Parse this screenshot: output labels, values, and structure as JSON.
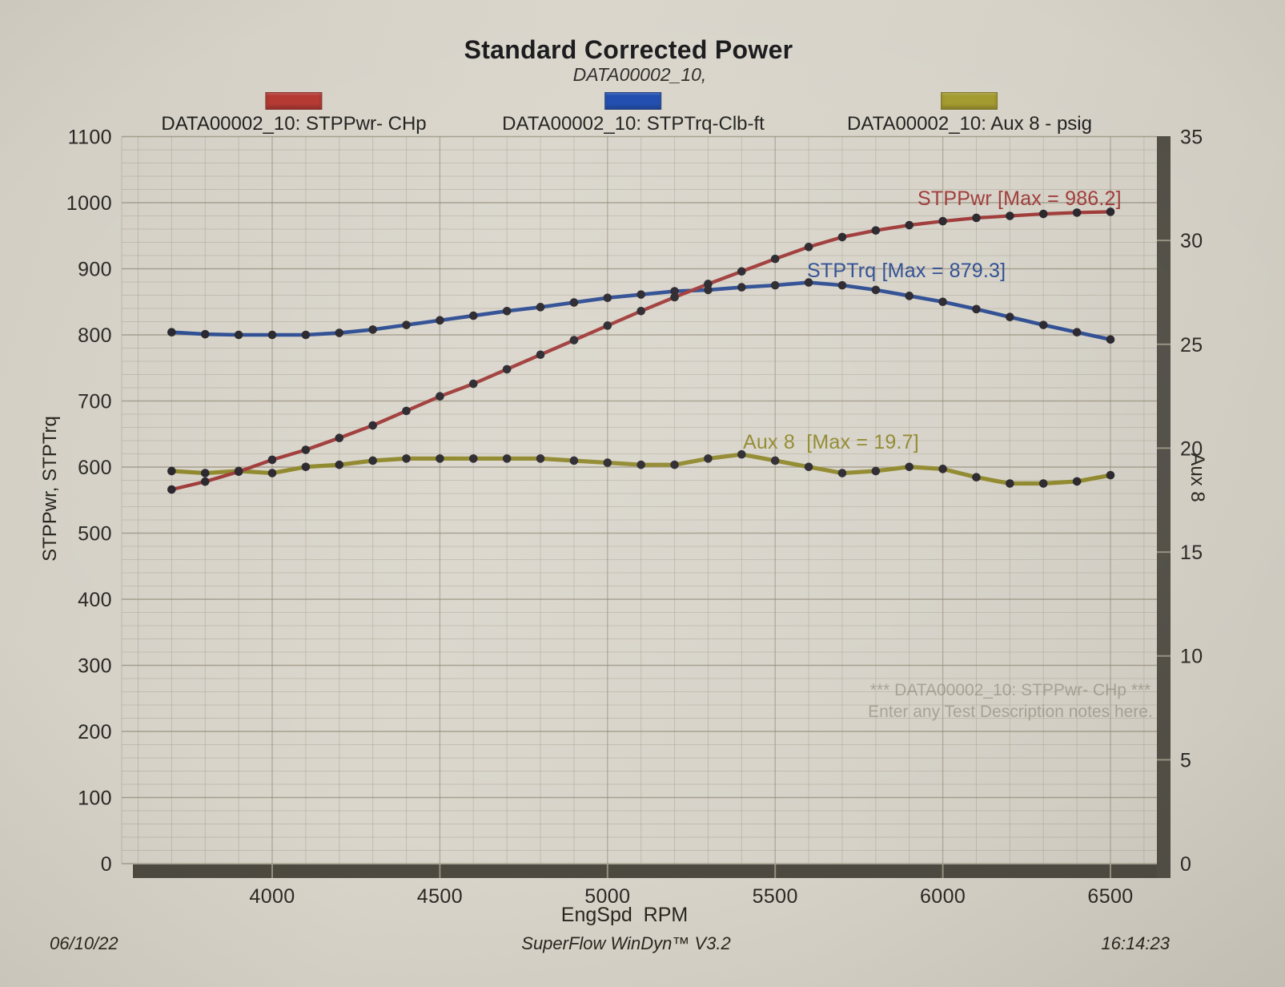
{
  "title": "Standard Corrected Power",
  "subtitle": "DATA00002_10,",
  "legend": {
    "items": [
      {
        "label": "DATA00002_10: STPPwr- CHp",
        "color": "#b43832"
      },
      {
        "label": "DATA00002_10: STPTrq-Clb-ft",
        "color": "#1e4cae"
      },
      {
        "label": "DATA00002_10: Aux 8 - psig",
        "color": "#a39a2d"
      }
    ]
  },
  "axes": {
    "x_label": "EngSpd  RPM",
    "y_left_label": "STPPwr, STPTrq",
    "y_right_label": "Aux 8"
  },
  "watermark": {
    "line1": "*** DATA00002_10: STPPwr- CHp ***",
    "line2": "Enter any Test Description notes here."
  },
  "footer": {
    "date": "06/10/22",
    "software": "SuperFlow WinDyn™ V3.2",
    "time": "16:14:23"
  },
  "chart_data": {
    "type": "line",
    "title": "Standard Corrected Power",
    "xlabel": "EngSpd RPM",
    "ylabel_left": "STPPwr, STPTrq",
    "ylabel_right": "Aux 8",
    "xlim": [
      3550,
      6640
    ],
    "ylim_left": [
      0,
      1100
    ],
    "ylim_right": [
      0,
      35
    ],
    "grid": true,
    "x_ticks": [
      4000,
      4500,
      5000,
      5500,
      6000,
      6500
    ],
    "y_ticks_left": [
      0,
      100,
      200,
      300,
      400,
      500,
      600,
      700,
      800,
      900,
      1000,
      1100
    ],
    "y_ticks_right": [
      0,
      5,
      10,
      15,
      20,
      25,
      30,
      35
    ],
    "marker_color": "#26242a",
    "x": [
      3700,
      3800,
      3900,
      4000,
      4100,
      4200,
      4300,
      4400,
      4500,
      4600,
      4700,
      4800,
      4900,
      5000,
      5100,
      5200,
      5300,
      5400,
      5500,
      5600,
      5700,
      5800,
      5900,
      6000,
      6100,
      6200,
      6300,
      6400,
      6500
    ],
    "series": [
      {
        "name": "STPPwr",
        "unit": "CHp",
        "axis": "left",
        "color": "#9e3937",
        "max": 986.2,
        "annotation": "STPPwr [Max = 986.2]",
        "values": [
          566,
          578,
          593,
          611,
          626,
          644,
          663,
          685,
          707,
          726,
          748,
          770,
          792,
          814,
          836,
          857,
          877,
          896,
          915,
          933,
          948,
          958,
          966,
          972,
          977,
          980,
          983,
          985,
          986.2
        ]
      },
      {
        "name": "STPTrq",
        "unit": "Clb-ft",
        "axis": "left",
        "color": "#2b4b91",
        "max": 879.3,
        "annotation": "STPTrq [Max = 879.3]",
        "values": [
          804,
          801,
          800,
          800,
          800,
          803,
          808,
          815,
          822,
          829,
          836,
          842,
          849,
          856,
          861,
          866,
          868,
          872,
          875,
          879.3,
          875,
          868,
          859,
          850,
          839,
          827,
          815,
          804,
          793
        ]
      },
      {
        "name": "Aux 8",
        "unit": "psig",
        "axis": "right",
        "color": "#8e8629",
        "max": 19.7,
        "annotation": "Aux 8  [Max = 19.7]",
        "values": [
          18.9,
          18.8,
          18.9,
          18.8,
          19.1,
          19.2,
          19.4,
          19.5,
          19.5,
          19.5,
          19.5,
          19.5,
          19.4,
          19.3,
          19.2,
          19.2,
          19.5,
          19.7,
          19.4,
          19.1,
          18.8,
          18.9,
          19.1,
          19.0,
          18.6,
          18.3,
          18.3,
          18.4,
          18.7
        ]
      }
    ]
  }
}
